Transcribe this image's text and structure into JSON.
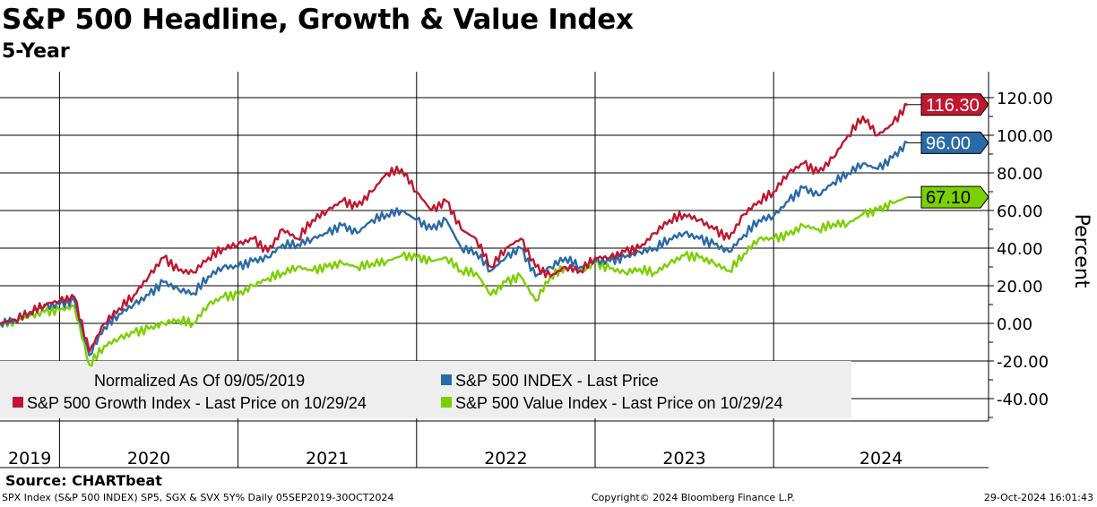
{
  "title": "S&P 500 Headline, Growth & Value Index",
  "subtitle": "5-Year",
  "source": "Source: CHARTbeat",
  "footer": {
    "left": "SPX Index (S&P 500 INDEX) SP5, SGX & SVX 5Y%  Daily 05SEP2019-30OCT2024",
    "center": "Copyright© 2024 Bloomberg Finance L.P.",
    "right": "29-Oct-2024 16:01:43"
  },
  "chart_data": {
    "type": "line",
    "ylabel": "Percent",
    "ylim": [
      -50,
      125
    ],
    "yticks": [
      "120.00",
      "100.00",
      "80.00",
      "60.00",
      "40.00",
      "20.00",
      "0.00",
      "-20.00",
      "-40.00"
    ],
    "ytick_values": [
      120,
      100,
      80,
      60,
      40,
      20,
      0,
      -20,
      -40
    ],
    "xlabels": [
      "2019",
      "2020",
      "2021",
      "2022",
      "2023",
      "2024"
    ],
    "x_start": "2019-09",
    "x_unit": "month",
    "legend": {
      "note": "Normalized As Of 09/05/2019",
      "placement": "bottom-left"
    },
    "series": [
      {
        "name": "S&P 500 Growth Index - Last Price on 10/29/24",
        "color": "#c0172f",
        "last_label": "116.30",
        "label_text": "#ffffff",
        "values": [
          0,
          2,
          6,
          10,
          12,
          14,
          -15,
          0,
          8,
          15,
          25,
          35,
          28,
          27,
          35,
          40,
          42,
          45,
          38,
          50,
          45,
          55,
          60,
          65,
          62,
          70,
          80,
          82,
          70,
          60,
          65,
          50,
          45,
          30,
          40,
          45,
          30,
          25,
          30,
          28,
          35,
          35,
          38,
          40,
          48,
          55,
          58,
          55,
          50,
          45,
          58,
          65,
          70,
          80,
          85,
          80,
          88,
          100,
          110,
          100,
          106,
          116.3
        ]
      },
      {
        "name": "S&P 500 INDEX - Last Price",
        "color": "#2a6aa8",
        "last_label": "96.00",
        "label_text": "#ffffff",
        "values": [
          0,
          2,
          6,
          9,
          10,
          12,
          -17,
          -2,
          5,
          10,
          15,
          22,
          18,
          16,
          25,
          30,
          30,
          33,
          35,
          42,
          42,
          45,
          48,
          52,
          48,
          55,
          58,
          60,
          55,
          50,
          55,
          40,
          38,
          28,
          35,
          40,
          25,
          30,
          35,
          30,
          33,
          33,
          35,
          38,
          40,
          45,
          48,
          45,
          42,
          38,
          47,
          55,
          57,
          65,
          72,
          68,
          75,
          80,
          85,
          82,
          88,
          96
        ]
      },
      {
        "name": "S&P 500 Value Index - Last Price on 10/29/24",
        "color": "#7ccf00",
        "last_label": "67.10",
        "label_text": "#000000",
        "values": [
          0,
          1,
          4,
          6,
          7,
          9,
          -22,
          -12,
          -8,
          -5,
          -3,
          0,
          2,
          0,
          10,
          14,
          15,
          20,
          24,
          27,
          30,
          28,
          30,
          32,
          30,
          32,
          33,
          36,
          35,
          33,
          35,
          28,
          27,
          15,
          22,
          25,
          12,
          25,
          30,
          28,
          32,
          29,
          27,
          29,
          27,
          32,
          36,
          35,
          32,
          28,
          37,
          45,
          45,
          47,
          52,
          50,
          53,
          53,
          58,
          60,
          64,
          67.1
        ]
      }
    ]
  }
}
